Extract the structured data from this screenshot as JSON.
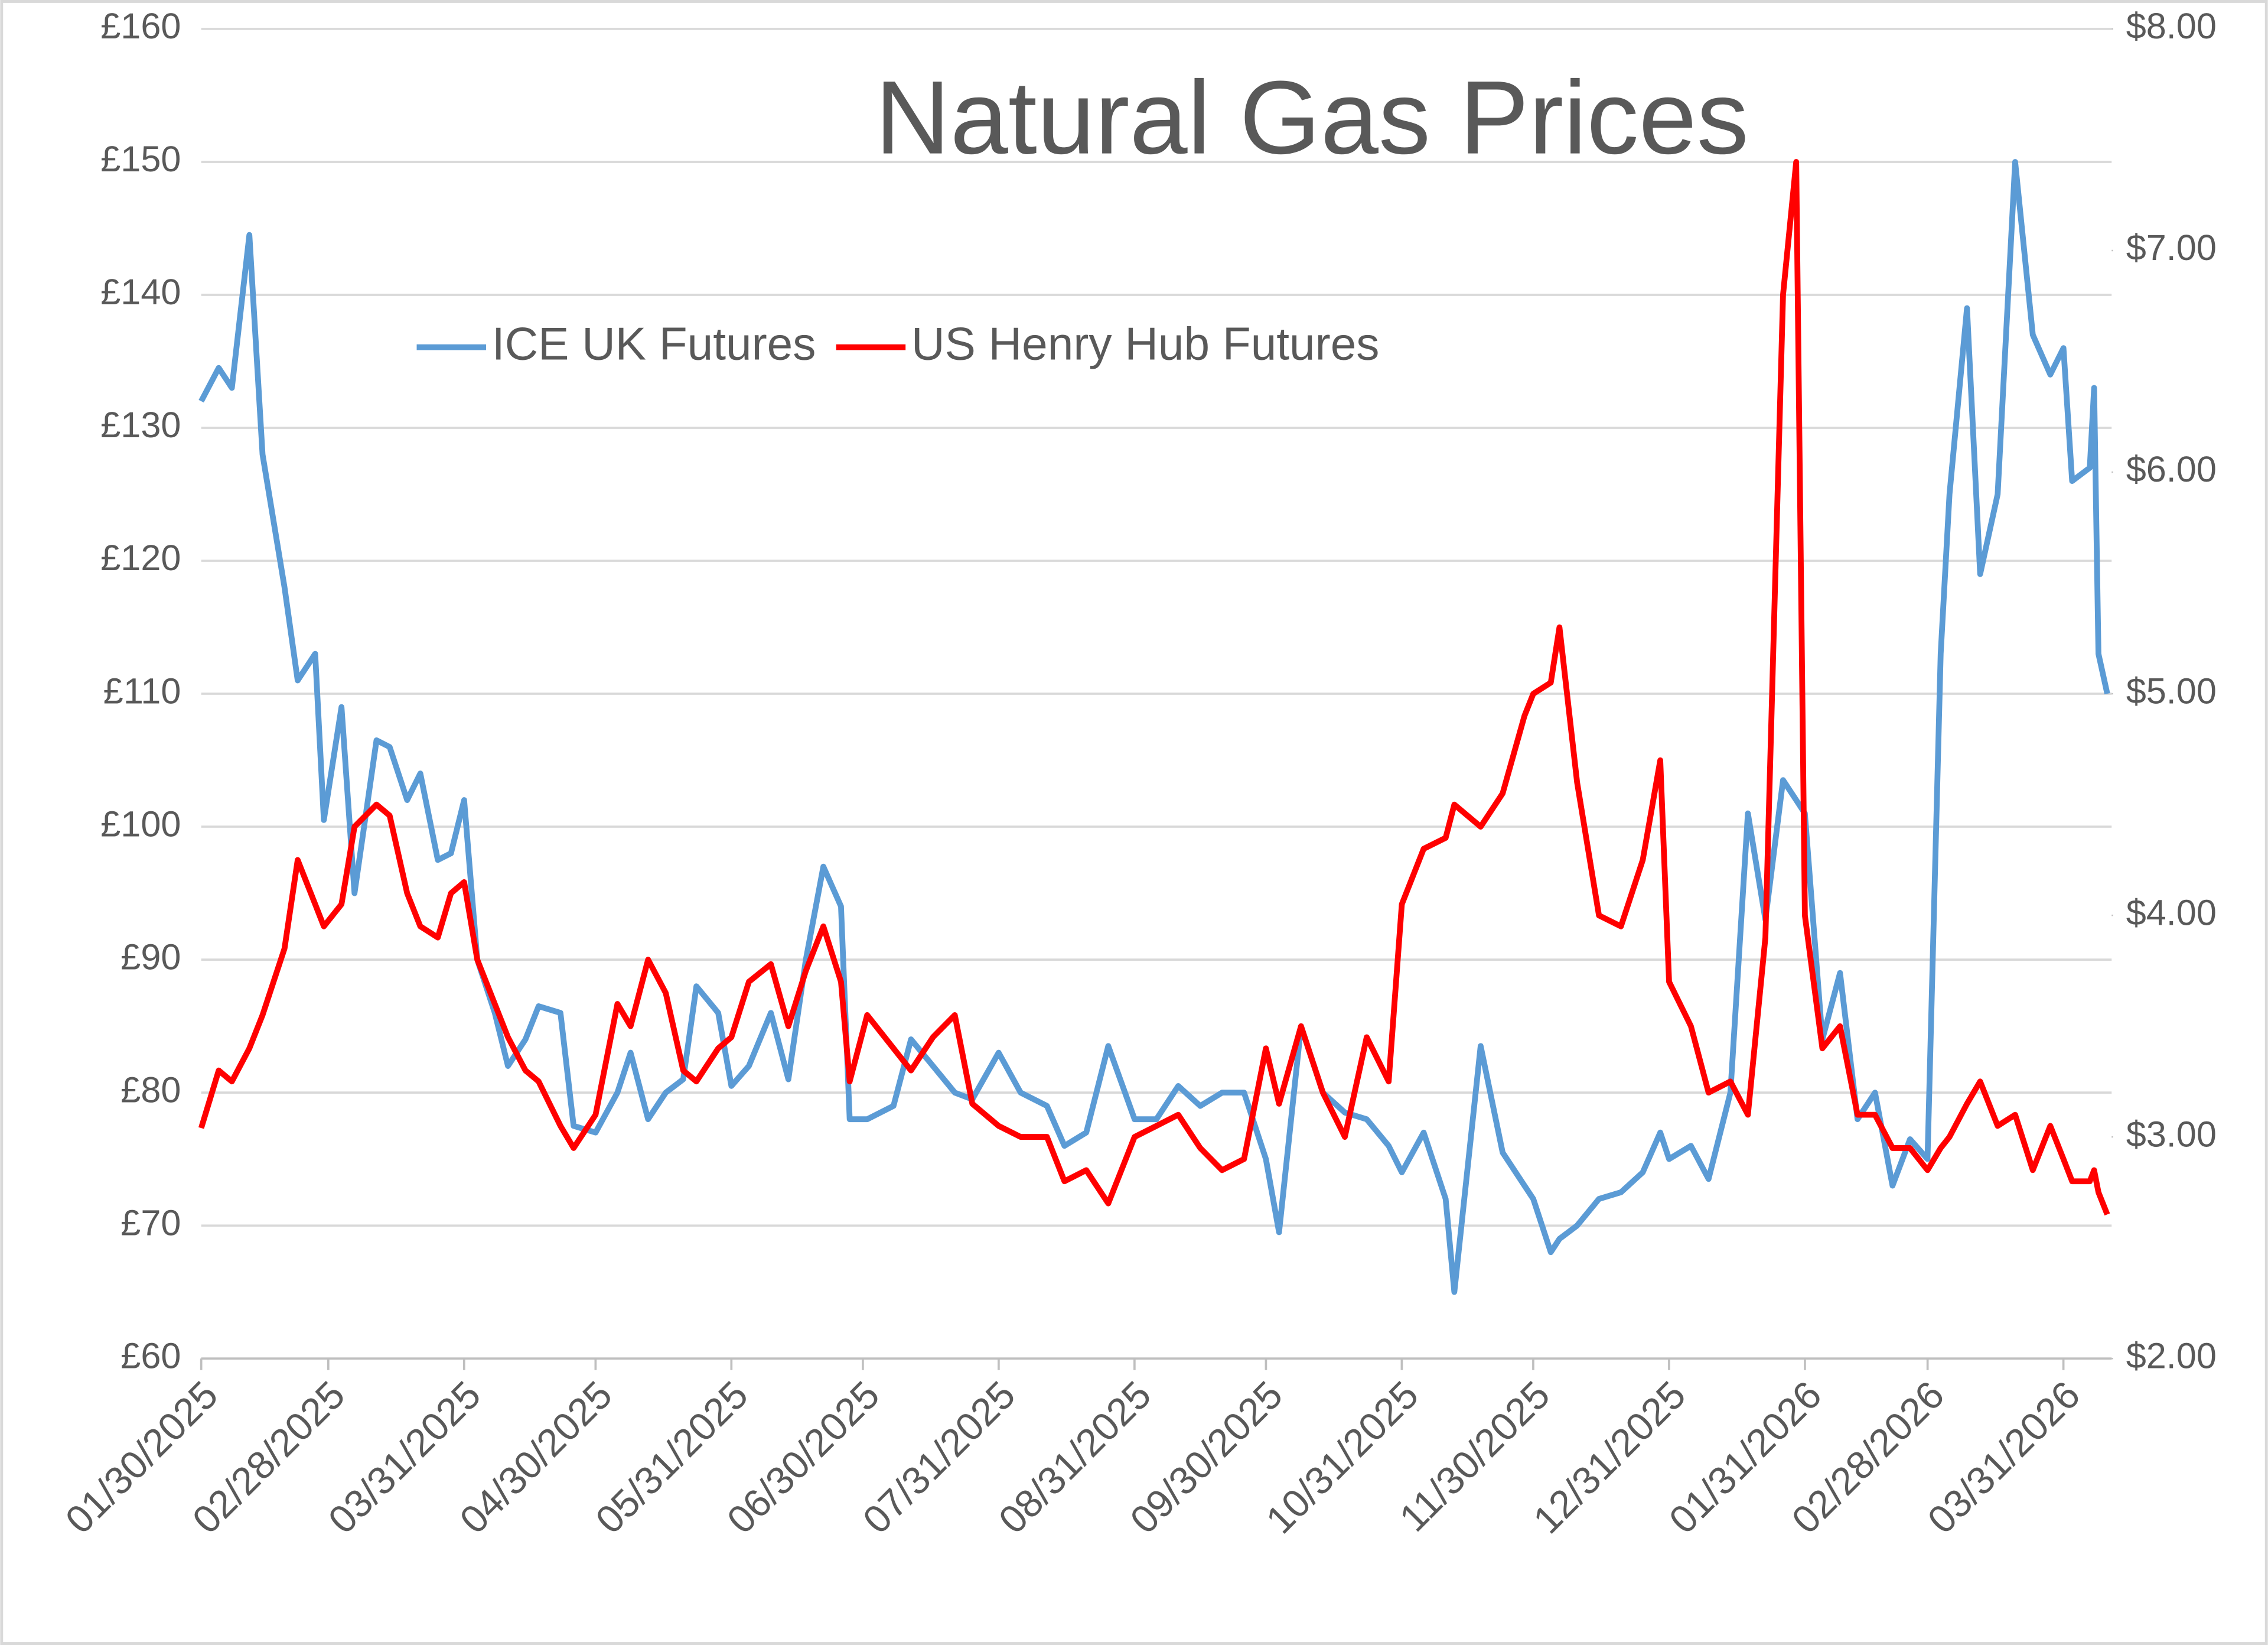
{
  "chart_data": {
    "type": "line",
    "title": "Natural Gas Prices",
    "legend": "upper-left",
    "grid": true,
    "x": [
      "01/30/2025",
      "02/03/2025",
      "02/06/2025",
      "02/10/2025",
      "02/13/2025",
      "02/18/2025",
      "02/21/2025",
      "02/25/2025",
      "02/27/2025",
      "03/03/2025",
      "03/06/2025",
      "03/11/2025",
      "03/14/2025",
      "03/18/2025",
      "03/21/2025",
      "03/25/2025",
      "03/28/2025",
      "03/31/2025",
      "04/03/2025",
      "04/07/2025",
      "04/10/2025",
      "04/14/2025",
      "04/17/2025",
      "04/22/2025",
      "04/25/2025",
      "04/30/2025",
      "05/05/2025",
      "05/08/2025",
      "05/12/2025",
      "05/16/2025",
      "05/20/2025",
      "05/23/2025",
      "05/28/2025",
      "05/31/2025",
      "06/04/2025",
      "06/09/2025",
      "06/13/2025",
      "06/17/2025",
      "06/21/2025",
      "06/25/2025",
      "06/27/2025",
      "07/01/2025",
      "07/07/2025",
      "07/11/2025",
      "07/16/2025",
      "07/21/2025",
      "07/25/2025",
      "07/31/2025",
      "08/05/2025",
      "08/11/2025",
      "08/15/2025",
      "08/20/2025",
      "08/25/2025",
      "08/31/2025",
      "09/05/2025",
      "09/10/2025",
      "09/15/2025",
      "09/20/2025",
      "09/25/2025",
      "09/30/2025",
      "10/03/2025",
      "10/08/2025",
      "10/13/2025",
      "10/18/2025",
      "10/23/2025",
      "10/28/2025",
      "10/31/2025",
      "11/05/2025",
      "11/10/2025",
      "11/12/2025",
      "11/18/2025",
      "11/23/2025",
      "11/28/2025",
      "11/30/2025",
      "12/04/2025",
      "12/06/2025",
      "12/10/2025",
      "12/15/2025",
      "12/20/2025",
      "12/25/2025",
      "12/29/2025",
      "12/31/2025",
      "01/05/2026",
      "01/09/2026",
      "01/14/2026",
      "01/18/2026",
      "01/22/2026",
      "01/26/2026",
      "01/29/2026",
      "01/31/2026",
      "02/04/2026",
      "02/08/2026",
      "02/12/2026",
      "02/16/2026",
      "02/20/2026",
      "02/24/2026",
      "02/28/2026",
      "03/03/2026",
      "03/05/2026",
      "03/09/2026",
      "03/12/2026",
      "03/16/2026",
      "03/20/2026",
      "03/24/2026",
      "03/28/2026",
      "03/31/2026",
      "04/02/2026",
      "04/06/2026",
      "04/07/2026",
      "04/08/2026",
      "04/10/2026"
    ],
    "series": [
      {
        "name": "ICE UK Futures",
        "color": "#5b9bd5",
        "axis": "y",
        "values": [
          132,
          134.5,
          133,
          144.5,
          128,
          118,
          111,
          113,
          100.5,
          109,
          95,
          106.5,
          106,
          102,
          104,
          97.5,
          98,
          102,
          90,
          86,
          82,
          84,
          86.5,
          86,
          77.5,
          77,
          80,
          83,
          78,
          80,
          81,
          88,
          86,
          80.5,
          82,
          86,
          81,
          90,
          97,
          94,
          78,
          78,
          79,
          84,
          82,
          80,
          79.5,
          83,
          80,
          79,
          76,
          77,
          83.5,
          78,
          78,
          80.5,
          79,
          80,
          80,
          75,
          69.5,
          85,
          80,
          78.5,
          78,
          76,
          74,
          77,
          72,
          65,
          83.5,
          75.5,
          73,
          72,
          68,
          69,
          70,
          72,
          72.5,
          74,
          77,
          75,
          76,
          73.5,
          80,
          101,
          93,
          103.5,
          102,
          101,
          84,
          89,
          78,
          80,
          73,
          76.5,
          75,
          113,
          125,
          139,
          119,
          125,
          150,
          137,
          134,
          136,
          126,
          127,
          133,
          113,
          110
        ]
      },
      {
        "name": "US Henry Hub Futures",
        "color": "#ff0000",
        "axis": "y2",
        "values": [
          3.04,
          3.3,
          3.25,
          3.4,
          3.55,
          3.85,
          4.25,
          4.05,
          3.95,
          4.05,
          4.4,
          4.5,
          4.45,
          4.1,
          3.95,
          3.9,
          4.1,
          4.15,
          3.8,
          3.6,
          3.45,
          3.3,
          3.25,
          3.05,
          2.95,
          3.1,
          3.6,
          3.5,
          3.8,
          3.65,
          3.3,
          3.25,
          3.4,
          3.45,
          3.7,
          3.78,
          3.5,
          3.75,
          3.95,
          3.7,
          3.25,
          3.55,
          3.4,
          3.3,
          3.45,
          3.55,
          3.15,
          3.05,
          3,
          3,
          2.8,
          2.85,
          2.7,
          3,
          3.05,
          3.1,
          2.95,
          2.85,
          2.9,
          3.4,
          3.15,
          3.5,
          3.2,
          3,
          3.45,
          3.25,
          4.05,
          4.3,
          4.35,
          4.5,
          4.4,
          4.55,
          4.9,
          5,
          5.05,
          5.3,
          4.6,
          4,
          3.95,
          4.25,
          4.7,
          3.7,
          3.5,
          3.2,
          3.25,
          3.1,
          3.9,
          6.8,
          7.4,
          4,
          3.4,
          3.5,
          3.1,
          3.1,
          2.95,
          2.95,
          2.85,
          2.95,
          3,
          3.15,
          3.25,
          3.05,
          3.1,
          2.85,
          3.05,
          2.9,
          2.8,
          2.8,
          2.85,
          2.75,
          2.65
        ]
      }
    ],
    "xlim": [
      "01/30/2025",
      "04/11/2026"
    ],
    "xticks": [
      "01/30/2025",
      "02/28/2025",
      "03/31/2025",
      "04/30/2025",
      "05/31/2025",
      "06/30/2025",
      "07/31/2025",
      "08/31/2025",
      "09/30/2025",
      "10/31/2025",
      "11/30/2025",
      "12/31/2025",
      "01/31/2026",
      "02/28/2026",
      "03/31/2026"
    ],
    "ylim": [
      60,
      160
    ],
    "yticks": [
      {
        "value": 60,
        "label": "£60"
      },
      {
        "value": 70,
        "label": "£70"
      },
      {
        "value": 80,
        "label": "£80"
      },
      {
        "value": 90,
        "label": "£90"
      },
      {
        "value": 100,
        "label": "£100"
      },
      {
        "value": 110,
        "label": "£110"
      },
      {
        "value": 120,
        "label": "£120"
      },
      {
        "value": 130,
        "label": "£130"
      },
      {
        "value": 140,
        "label": "£140"
      },
      {
        "value": 150,
        "label": "£150"
      },
      {
        "value": 160,
        "label": "£160"
      }
    ],
    "y2lim": [
      2,
      8
    ],
    "y2ticks": [
      {
        "value": 2,
        "label": "$2.00"
      },
      {
        "value": 3,
        "label": "$3.00"
      },
      {
        "value": 4,
        "label": "$4.00"
      },
      {
        "value": 5,
        "label": "$5.00"
      },
      {
        "value": 6,
        "label": "$6.00"
      },
      {
        "value": 7,
        "label": "$7.00"
      },
      {
        "value": 8,
        "label": "$8.00"
      }
    ]
  }
}
